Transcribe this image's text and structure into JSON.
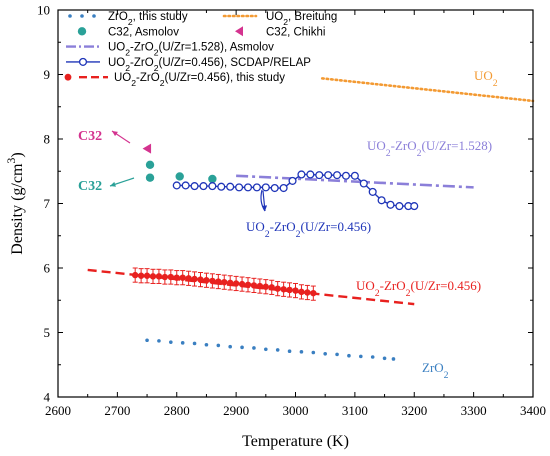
{
  "chart_data": {
    "type": "scatter",
    "xlabel": "Temperature (K)",
    "ylabel": "Density (g/cm³)",
    "xlim": [
      2600,
      3400
    ],
    "ylim": [
      4,
      10
    ],
    "xticks": [
      "2600",
      "2700",
      "2800",
      "2900",
      "3000",
      "3100",
      "3200",
      "3300",
      "3400"
    ],
    "yticks": [
      "4",
      "5",
      "6",
      "7",
      "8",
      "9",
      "10"
    ],
    "grid": false,
    "legend_position": "top-left",
    "legend": [
      "ZrO₂, this study",
      "UO₂, Breitung",
      "C32, Asmolov",
      "C32, Chikhi",
      "UO₂-ZrO₂(U/Zr=1.528), Asmolov",
      "UO₂-ZrO₂(U/Zr=0.456), SCDAP/RELAP",
      "UO₂-ZrO₂(U/Zr=0.456),  this study"
    ],
    "annotations": [
      "UO₂",
      "UO₂-ZrO₂(U/Zr=1.528)",
      "UO₂-ZrO₂(U/Zr=0.456)",
      "UO₂-ZrO₂(U/Zr=0.456)",
      "ZrO₂",
      "C32",
      "C32"
    ],
    "series": [
      {
        "name": "ZrO₂, this study",
        "kind": "dots",
        "color": "#3a7fc1",
        "x": [
          2750,
          2770,
          2790,
          2810,
          2830,
          2850,
          2870,
          2890,
          2910,
          2930,
          2950,
          2970,
          2990,
          3010,
          3030,
          3050,
          3070,
          3090,
          3110,
          3130,
          3150,
          3165
        ],
        "y": [
          4.88,
          4.87,
          4.85,
          4.84,
          4.83,
          4.81,
          4.8,
          4.78,
          4.77,
          4.76,
          4.74,
          4.73,
          4.71,
          4.7,
          4.69,
          4.67,
          4.66,
          4.64,
          4.63,
          4.62,
          4.6,
          4.59
        ]
      },
      {
        "name": "UO₂, Breitung",
        "kind": "dotted",
        "color": "#f39a33",
        "x": [
          3045,
          3400
        ],
        "y": [
          8.94,
          8.59
        ]
      },
      {
        "name": "C32, Asmolov",
        "kind": "circle-filled",
        "color": "#2aa198",
        "x": [
          2755,
          2755,
          2805,
          2860
        ],
        "y": [
          7.6,
          7.4,
          7.42,
          7.38
        ]
      },
      {
        "name": "C32, Chikhi",
        "kind": "triangle",
        "color": "#d4338f",
        "x": [
          2750
        ],
        "y": [
          7.85
        ]
      },
      {
        "name": "UO₂-ZrO₂(U/Zr=1.528), Asmolov",
        "kind": "dashdot",
        "color": "#8b7fd9",
        "x": [
          2900,
          3300
        ],
        "y": [
          7.43,
          7.25
        ]
      },
      {
        "name": "UO₂-ZrO₂(U/Zr=0.456), SCDAP/RELAP",
        "kind": "line-open-circles",
        "color": "#1f35b8",
        "x": [
          2800,
          2815,
          2830,
          2845,
          2860,
          2875,
          2890,
          2905,
          2920,
          2935,
          2950,
          2965,
          2980,
          2995,
          3010,
          3025,
          3040,
          3055,
          3070,
          3085,
          3100,
          3115,
          3130,
          3145,
          3160,
          3175,
          3190,
          3200
        ],
        "y": [
          7.28,
          7.28,
          7.27,
          7.27,
          7.27,
          7.26,
          7.26,
          7.25,
          7.25,
          7.25,
          7.25,
          7.24,
          7.24,
          7.35,
          7.45,
          7.45,
          7.44,
          7.44,
          7.44,
          7.43,
          7.43,
          7.31,
          7.18,
          7.05,
          6.98,
          6.96,
          6.96,
          6.96
        ]
      },
      {
        "name": "UO₂-ZrO₂(U/Zr=0.456),  this study",
        "kind": "markers-errorbars",
        "color": "#e8211f",
        "x": [
          2730,
          2740,
          2750,
          2760,
          2770,
          2780,
          2790,
          2800,
          2810,
          2820,
          2830,
          2840,
          2850,
          2860,
          2870,
          2880,
          2890,
          2900,
          2910,
          2920,
          2930,
          2940,
          2950,
          2960,
          2970,
          2980,
          2990,
          3000,
          3010,
          3020,
          3030
        ],
        "y": [
          5.89,
          5.88,
          5.88,
          5.87,
          5.87,
          5.86,
          5.86,
          5.85,
          5.85,
          5.84,
          5.83,
          5.82,
          5.81,
          5.8,
          5.79,
          5.78,
          5.77,
          5.76,
          5.75,
          5.74,
          5.73,
          5.72,
          5.71,
          5.7,
          5.68,
          5.67,
          5.66,
          5.65,
          5.63,
          5.62,
          5.61
        ],
        "err": 0.11
      },
      {
        "name": "UO₂-ZrO₂(U/Zr=0.456),  this study (fit)",
        "kind": "dashed",
        "color": "#e8211f",
        "x": [
          2650,
          3200
        ],
        "y": [
          5.97,
          5.44
        ]
      }
    ]
  }
}
